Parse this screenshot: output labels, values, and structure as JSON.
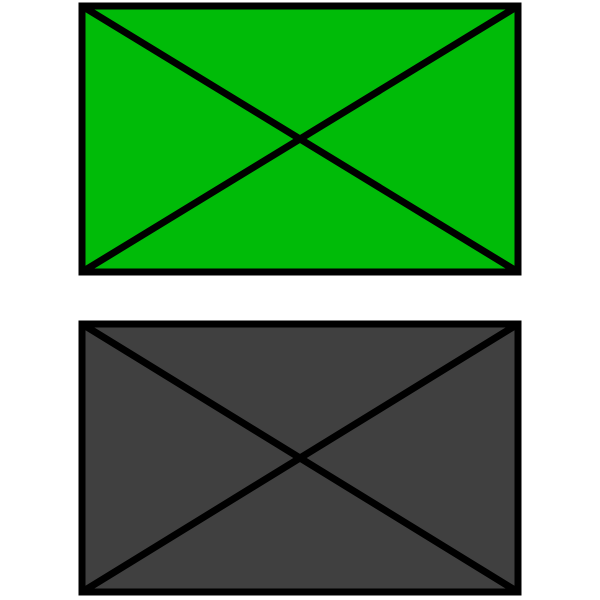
{
  "colors": {
    "background": "#ffffff",
    "outline": "#000000",
    "top_box_fill": "#00bb08",
    "bottom_box_fill": "#404040"
  },
  "boxes": [
    {
      "name": "top-box",
      "fill_color_key": "top_box_fill"
    },
    {
      "name": "bottom-box",
      "fill_color_key": "bottom_box_fill"
    }
  ]
}
